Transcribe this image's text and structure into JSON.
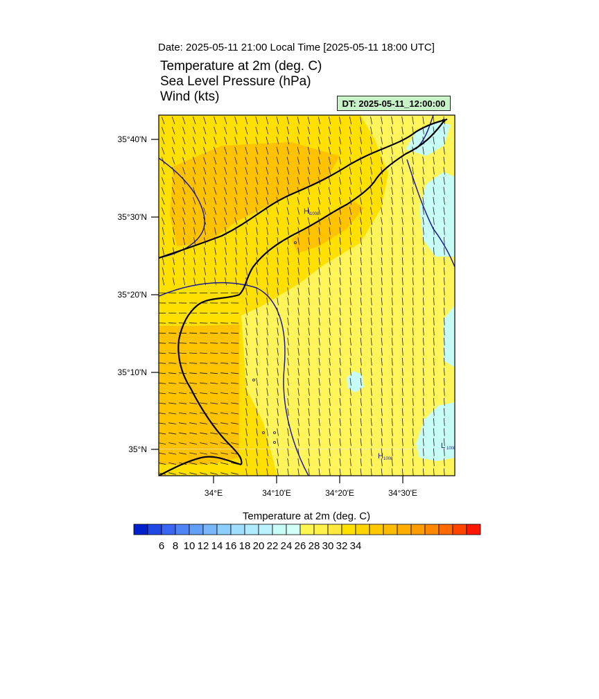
{
  "header": {
    "date_line": "Date: 2025-05-11  21:00 Local Time [2025-05-11  18:00 UTC]",
    "title_lines": [
      "Temperature at 2m   (deg. C)",
      "Sea Level Pressure   (hPa)",
      "Wind   (kts)"
    ],
    "dt_badge": "DT: 2025-05-11_12:00:00"
  },
  "map": {
    "lat_labels": [
      "35°40'N",
      "35°30'N",
      "35°20'N",
      "35°10'N",
      "35°N"
    ],
    "lon_labels": [
      "34°E",
      "34°10'E",
      "34°20'E",
      "34°30'E"
    ],
    "pressure_labels": [
      {
        "symbol": "H",
        "value": "1008"
      },
      {
        "symbol": "H",
        "value": "1008"
      },
      {
        "symbol": "L",
        "value": "1008"
      }
    ],
    "colors": {
      "temp_22_24": "#fff55a",
      "temp_24_26": "#ffe000",
      "temp_26_28": "#ffc200",
      "temp_28_30": "#ffa800",
      "cool_20_22": "#c6fbf6",
      "coast": "#000000",
      "isobar": "#1a1a99",
      "wind_barb": "#1a1a1a"
    }
  },
  "colorbar": {
    "title": "Temperature at 2m  (deg. C)",
    "tick_labels": [
      "6",
      "8",
      "10",
      "12",
      "14",
      "16",
      "18",
      "20",
      "22",
      "24",
      "26",
      "28",
      "30",
      "32",
      "34"
    ],
    "colors": [
      "#0022cc",
      "#1f48e4",
      "#3a66f2",
      "#4f84f6",
      "#62a0f8",
      "#78b8fa",
      "#8ccffc",
      "#9fdefd",
      "#afeafd",
      "#bcf2fd",
      "#c6fbf6",
      "#d2fef8",
      "#fff64f",
      "#fff04a",
      "#ffe93d",
      "#ffe000",
      "#ffd400",
      "#ffc800",
      "#ffbb00",
      "#ffad00",
      "#ff9d00",
      "#ff8800",
      "#ff6a00",
      "#ff4400",
      "#ff1800"
    ]
  }
}
